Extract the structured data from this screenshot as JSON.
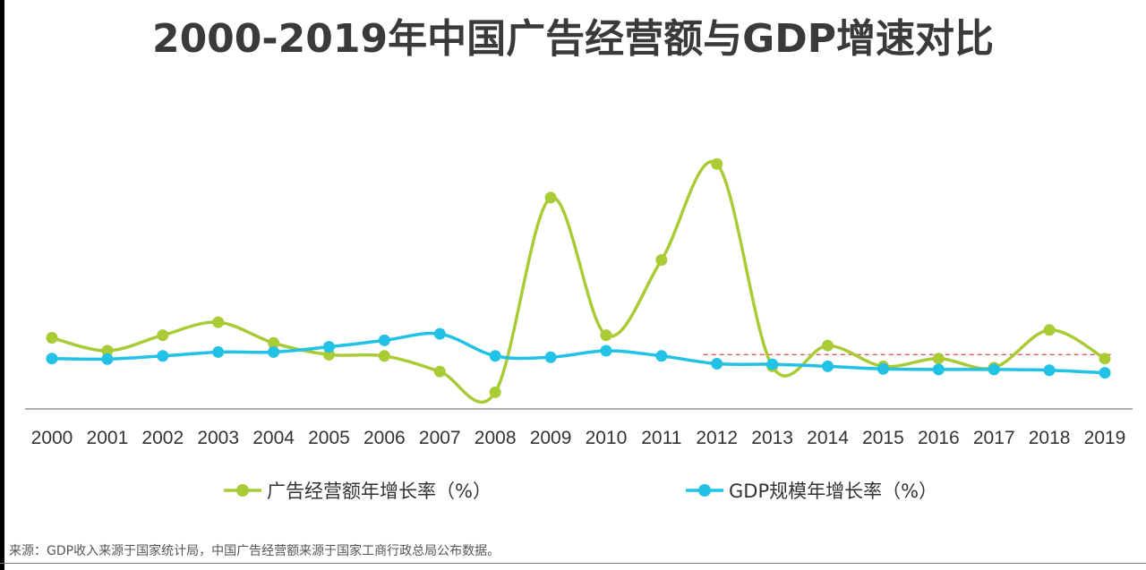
{
  "page": {
    "title": "2000-2019年中国广告经营额与GDP增速对比",
    "source_note": "来源：GDP收入来源于国家统计局，中国广告经营额来源于国家工商行政总局公布数据。"
  },
  "colors": {
    "advertising": "#a9cb36",
    "gdp": "#22c1e6",
    "reference_line": "#e05a5a",
    "axis": "#7f7f7f",
    "tick_text": "#333333",
    "title": "#3a3a3a"
  },
  "chart_data": {
    "type": "line",
    "smooth": true,
    "title": "2000-2019年中国广告经营额与GDP增速对比",
    "categories": [
      "2000",
      "2001",
      "2002",
      "2003",
      "2004",
      "2005",
      "2006",
      "2007",
      "2008",
      "2009",
      "2010",
      "2011",
      "2012",
      "2013",
      "2014",
      "2015",
      "2016",
      "2017",
      "2018",
      "2019"
    ],
    "series": [
      {
        "name": "广告经营额年增长率（%）",
        "color": "#a9cb36",
        "values": [
          15,
          10,
          16,
          21,
          13,
          8.5,
          8,
          2,
          -6,
          69,
          16,
          45,
          82,
          4,
          12,
          4,
          7,
          3.5,
          18,
          7
        ]
      },
      {
        "name": "GDP规模年增长率（%）",
        "color": "#22c1e6",
        "values": [
          7,
          6.8,
          8,
          9.5,
          9.5,
          11.5,
          14,
          16.5,
          8,
          7.5,
          10,
          8,
          5,
          4.8,
          4,
          3,
          2.8,
          2.8,
          2.5,
          1.5
        ]
      }
    ],
    "reference_line": {
      "style": "dashed",
      "color": "#e05a5a",
      "from_category": "2012",
      "to_category": "2019",
      "value": 8.5
    },
    "xlabel": "",
    "ylabel": "",
    "ylim": [
      -10,
      90
    ],
    "y_axis_visible": false,
    "grid": false,
    "legend": {
      "position": "bottom",
      "layout": "horizontal"
    }
  }
}
